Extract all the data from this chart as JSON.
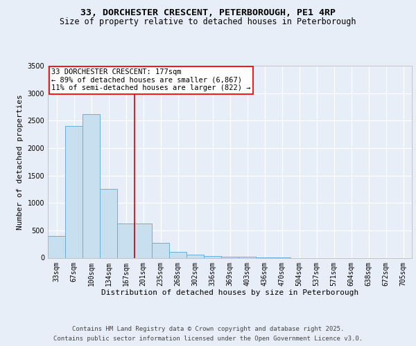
{
  "title_line1": "33, DORCHESTER CRESCENT, PETERBOROUGH, PE1 4RP",
  "title_line2": "Size of property relative to detached houses in Peterborough",
  "xlabel": "Distribution of detached houses by size in Peterborough",
  "ylabel": "Number of detached properties",
  "categories": [
    "33sqm",
    "67sqm",
    "100sqm",
    "134sqm",
    "167sqm",
    "201sqm",
    "235sqm",
    "268sqm",
    "302sqm",
    "336sqm",
    "369sqm",
    "403sqm",
    "436sqm",
    "470sqm",
    "504sqm",
    "537sqm",
    "571sqm",
    "604sqm",
    "638sqm",
    "672sqm",
    "705sqm"
  ],
  "values": [
    400,
    2400,
    2620,
    1250,
    630,
    630,
    265,
    110,
    55,
    35,
    25,
    20,
    5,
    5,
    0,
    0,
    0,
    0,
    0,
    0,
    0
  ],
  "bar_color": "#c8dff0",
  "bar_edge_color": "#6aaed6",
  "red_line_x": 4.5,
  "annotation_text": "33 DORCHESTER CRESCENT: 177sqm\n← 89% of detached houses are smaller (6,867)\n11% of semi-detached houses are larger (822) →",
  "ylim": [
    0,
    3500
  ],
  "yticks": [
    0,
    500,
    1000,
    1500,
    2000,
    2500,
    3000,
    3500
  ],
  "footer_line1": "Contains HM Land Registry data © Crown copyright and database right 2025.",
  "footer_line2": "Contains public sector information licensed under the Open Government Licence v3.0.",
  "background_color": "#e8eef8",
  "grid_color": "#ffffff",
  "title_fontsize": 9.5,
  "subtitle_fontsize": 8.5,
  "axis_label_fontsize": 8,
  "tick_fontsize": 7,
  "annotation_fontsize": 7.5,
  "footer_fontsize": 6.5
}
